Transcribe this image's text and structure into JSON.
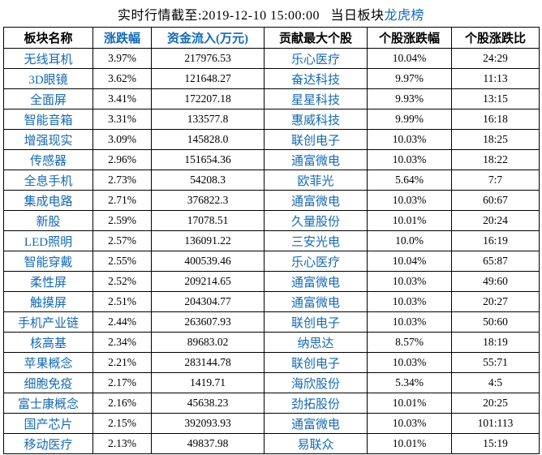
{
  "title": {
    "prefix": "实时行情截至:2019-12-10 15:00:00   当日板块",
    "link": "龙虎榜"
  },
  "table": {
    "headers": [
      {
        "id": "sector",
        "label": "板块名称",
        "accent": false
      },
      {
        "id": "change",
        "label": "涨跌幅",
        "accent": true
      },
      {
        "id": "inflow",
        "label": "资金流入(万元)",
        "accent": true
      },
      {
        "id": "stock",
        "label": "贡献最大个股",
        "accent": false
      },
      {
        "id": "stock-change",
        "label": "个股涨跌幅",
        "accent": false
      },
      {
        "id": "ratio",
        "label": "个股涨跌比",
        "accent": false
      }
    ],
    "rows": [
      {
        "sector": "无线耳机",
        "change": "3.97%",
        "inflow": "217976.53",
        "stock": "乐心医疗",
        "stock_change": "10.04%",
        "ratio": "24:29"
      },
      {
        "sector": "3D眼镜",
        "change": "3.62%",
        "inflow": "121648.27",
        "stock": "奋达科技",
        "stock_change": "9.97%",
        "ratio": "11:13"
      },
      {
        "sector": "全面屏",
        "change": "3.41%",
        "inflow": "172207.18",
        "stock": "星星科技",
        "stock_change": "9.93%",
        "ratio": "13:15"
      },
      {
        "sector": "智能音箱",
        "change": "3.31%",
        "inflow": "133577.8",
        "stock": "惠威科技",
        "stock_change": "9.99%",
        "ratio": "16:18"
      },
      {
        "sector": "增强现实",
        "change": "3.09%",
        "inflow": "145828.0",
        "stock": "联创电子",
        "stock_change": "10.03%",
        "ratio": "18:25"
      },
      {
        "sector": "传感器",
        "change": "2.96%",
        "inflow": "151654.36",
        "stock": "通富微电",
        "stock_change": "10.03%",
        "ratio": "18:22"
      },
      {
        "sector": "全息手机",
        "change": "2.73%",
        "inflow": "54208.3",
        "stock": "欧菲光",
        "stock_change": "5.64%",
        "ratio": "7:7"
      },
      {
        "sector": "集成电路",
        "change": "2.71%",
        "inflow": "376822.3",
        "stock": "通富微电",
        "stock_change": "10.03%",
        "ratio": "60:67"
      },
      {
        "sector": "新股",
        "change": "2.59%",
        "inflow": "17078.51",
        "stock": "久量股份",
        "stock_change": "10.01%",
        "ratio": "20:24"
      },
      {
        "sector": "LED照明",
        "change": "2.57%",
        "inflow": "136091.22",
        "stock": "三安光电",
        "stock_change": "10.0%",
        "ratio": "16:19"
      },
      {
        "sector": "智能穿戴",
        "change": "2.55%",
        "inflow": "400539.46",
        "stock": "乐心医疗",
        "stock_change": "10.04%",
        "ratio": "65:87"
      },
      {
        "sector": "柔性屏",
        "change": "2.52%",
        "inflow": "209214.65",
        "stock": "通富微电",
        "stock_change": "10.03%",
        "ratio": "49:60"
      },
      {
        "sector": "触摸屏",
        "change": "2.51%",
        "inflow": "204304.77",
        "stock": "通富微电",
        "stock_change": "10.03%",
        "ratio": "20:27"
      },
      {
        "sector": "手机产业链",
        "change": "2.44%",
        "inflow": "263607.93",
        "stock": "联创电子",
        "stock_change": "10.03%",
        "ratio": "50:60"
      },
      {
        "sector": "核高基",
        "change": "2.34%",
        "inflow": "89683.02",
        "stock": "纳思达",
        "stock_change": "8.57%",
        "ratio": "18:19"
      },
      {
        "sector": "苹果概念",
        "change": "2.21%",
        "inflow": "283144.78",
        "stock": "联创电子",
        "stock_change": "10.03%",
        "ratio": "55:71"
      },
      {
        "sector": "细胞免疫",
        "change": "2.17%",
        "inflow": "1419.71",
        "stock": "海欣股份",
        "stock_change": "5.34%",
        "ratio": "4:5"
      },
      {
        "sector": "富士康概念",
        "change": "2.16%",
        "inflow": "45638.23",
        "stock": "劲拓股份",
        "stock_change": "10.01%",
        "ratio": "20:25"
      },
      {
        "sector": "国产芯片",
        "change": "2.15%",
        "inflow": "392093.93",
        "stock": "通富微电",
        "stock_change": "10.03%",
        "ratio": "101:113"
      },
      {
        "sector": "移动医疗",
        "change": "2.13%",
        "inflow": "49837.98",
        "stock": "易联众",
        "stock_change": "10.01%",
        "ratio": "15:19"
      }
    ]
  },
  "colors": {
    "accent_blue": "#1569b3",
    "text": "#000000",
    "border": "#000000",
    "background": "#ffffff"
  }
}
